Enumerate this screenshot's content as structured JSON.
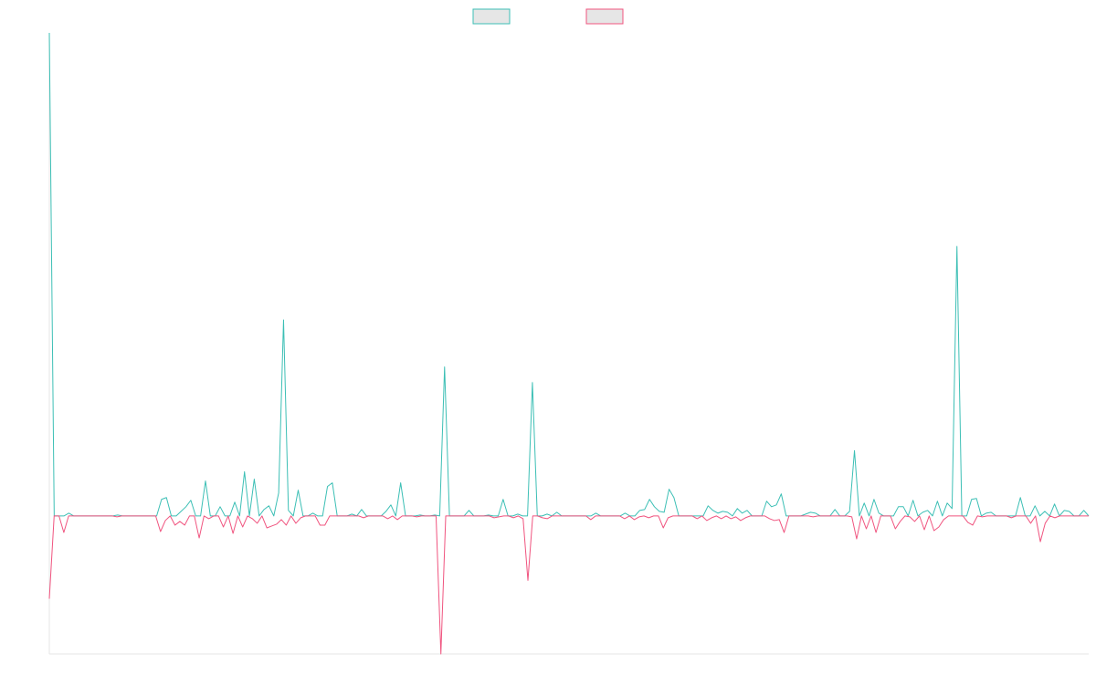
{
  "chart_data": {
    "type": "line",
    "title": "",
    "xlabel": "",
    "ylabel": "",
    "ylim": [
      -150,
      525
    ],
    "legend_position": "top-center",
    "grid": false,
    "series": [
      {
        "color": "#3cbfb5",
        "legend_fill": "#e6e6e6",
        "values": [
          525,
          0,
          0,
          0,
          3,
          0,
          0,
          0,
          0,
          0,
          0,
          0,
          0,
          0,
          1,
          0,
          0,
          0,
          0,
          0,
          0,
          0,
          0,
          18,
          20,
          0,
          0,
          5,
          10,
          17,
          0,
          0,
          38,
          0,
          0,
          10,
          0,
          0,
          15,
          0,
          48,
          0,
          40,
          0,
          7,
          11,
          0,
          25,
          213,
          6,
          0,
          28,
          0,
          0,
          3,
          0,
          0,
          32,
          36,
          0,
          0,
          0,
          2,
          0,
          7,
          0,
          0,
          0,
          0,
          5,
          12,
          0,
          36,
          0,
          0,
          0,
          1,
          0,
          0,
          1,
          0,
          162,
          0,
          0,
          0,
          0,
          6,
          0,
          0,
          0,
          1,
          0,
          0,
          18,
          0,
          0,
          2,
          0,
          0,
          145,
          0,
          0,
          2,
          0,
          4,
          0,
          0,
          0,
          0,
          0,
          0,
          0,
          3,
          0,
          0,
          0,
          0,
          0,
          3,
          0,
          0,
          6,
          7,
          18,
          10,
          5,
          4,
          29,
          20,
          0,
          0,
          0,
          0,
          0,
          0,
          11,
          6,
          3,
          5,
          4,
          0,
          8,
          3,
          6,
          0,
          0,
          0,
          16,
          10,
          12,
          24,
          0,
          0,
          0,
          0,
          2,
          4,
          3,
          0,
          0,
          0,
          7,
          0,
          0,
          5,
          71,
          0,
          14,
          0,
          18,
          3,
          0,
          0,
          0,
          10,
          10,
          0,
          17,
          0,
          4,
          6,
          0,
          16,
          0,
          14,
          8,
          293,
          0,
          0,
          18,
          19,
          0,
          3,
          4,
          0,
          0,
          0,
          0,
          0,
          20,
          0,
          0,
          11,
          0,
          5,
          0,
          13,
          0,
          6,
          5,
          0,
          0,
          6,
          0
        ]
      },
      {
        "color": "#f0547f",
        "legend_fill": "#e6e6e6",
        "values": [
          -90,
          0,
          0,
          -18,
          0,
          0,
          0,
          0,
          0,
          0,
          0,
          0,
          0,
          0,
          -1,
          0,
          0,
          0,
          0,
          0,
          0,
          0,
          0,
          -17,
          -5,
          0,
          -10,
          -6,
          -10,
          0,
          0,
          -24,
          0,
          -3,
          0,
          0,
          -12,
          0,
          -19,
          0,
          -12,
          0,
          -3,
          -8,
          0,
          -13,
          -11,
          -9,
          -4,
          -10,
          0,
          -8,
          -2,
          0,
          0,
          0,
          -10,
          -10,
          0,
          0,
          0,
          0,
          0,
          0,
          0,
          -2,
          0,
          0,
          0,
          0,
          -3,
          0,
          -4,
          0,
          0,
          0,
          -1,
          0,
          0,
          0,
          0,
          -150,
          0,
          0,
          0,
          0,
          0,
          0,
          0,
          0,
          0,
          0,
          -2,
          -1,
          0,
          0,
          -2,
          0,
          -3,
          -70,
          0,
          0,
          -2,
          -3,
          0,
          0,
          0,
          0,
          0,
          0,
          0,
          0,
          -4,
          0,
          0,
          0,
          0,
          0,
          0,
          -3,
          0,
          -4,
          -1,
          0,
          -2,
          0,
          0,
          -13,
          -2,
          0,
          0,
          0,
          0,
          0,
          -3,
          0,
          -5,
          -2,
          0,
          -3,
          0,
          -3,
          -1,
          -5,
          -2,
          0,
          0,
          0,
          0,
          -3,
          -5,
          -4,
          -18,
          0,
          0,
          0,
          0,
          0,
          -1,
          0,
          0,
          0,
          0,
          0,
          0,
          0,
          -1,
          -25,
          0,
          -14,
          0,
          -18,
          0,
          0,
          0,
          -14,
          -6,
          0,
          -1,
          -6,
          0,
          -15,
          0,
          -16,
          -12,
          -4,
          0,
          0,
          0,
          0,
          -7,
          -10,
          0,
          -1,
          0,
          0,
          0,
          0,
          0,
          -2,
          0,
          0,
          0,
          -8,
          0,
          -28,
          -8,
          0,
          -2,
          0,
          0,
          0,
          0,
          0,
          0,
          0
        ]
      }
    ]
  }
}
